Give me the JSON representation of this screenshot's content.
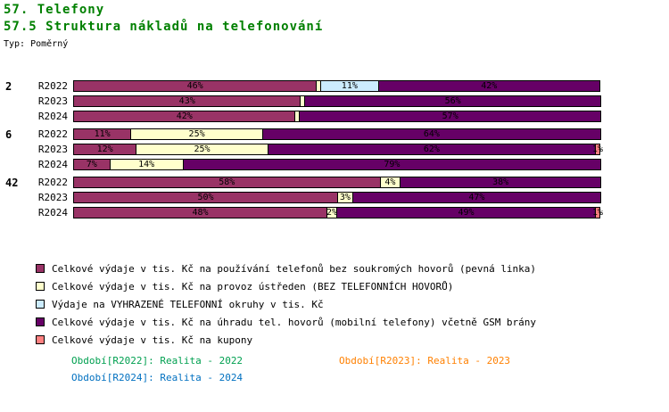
{
  "header": {
    "title": "57. Telefony",
    "subtitle": "57.5 Struktura nákladů na telefonování",
    "type_label": "Typ: Poměrný",
    "title_color": "#008000"
  },
  "chart_data": {
    "type": "bar",
    "variant": "horizontal-stacked-percent",
    "unit": "%",
    "xlim": [
      0,
      100
    ],
    "legend_position": "bottom-left",
    "grid": false,
    "series": [
      {
        "name": "Celkové výdaje v tis. Kč na používání telefonů bez soukromých hovorů (pevná linka)",
        "color": "#993366"
      },
      {
        "name": "Celkové výdaje v tis. Kč na provoz ústředen (BEZ TELEFONNÍCH HOVORŮ)",
        "color": "#FFFFCC"
      },
      {
        "name": "Výdaje na VYHRAZENÉ TELEFONNÍ okruhy v tis. Kč",
        "color": "#CCECFF"
      },
      {
        "name": "Celkové výdaje v tis. Kč na úhradu tel. hovorů (mobilní telefony) včetně GSM brány",
        "color": "#660066"
      },
      {
        "name": "Celkové výdaje v tis. Kč na kupony",
        "color": "#FF8080"
      }
    ],
    "groups": [
      {
        "label": "2",
        "rows": [
          {
            "period": "R2022",
            "segments": [
              {
                "series": 0,
                "value": 46,
                "label": "46%"
              },
              {
                "series": 1,
                "value": 1,
                "label": ""
              },
              {
                "series": 2,
                "value": 11,
                "label": "11%"
              },
              {
                "series": 3,
                "value": 42,
                "label": "42%"
              }
            ]
          },
          {
            "period": "R2023",
            "segments": [
              {
                "series": 0,
                "value": 43,
                "label": "43%"
              },
              {
                "series": 1,
                "value": 1,
                "label": ""
              },
              {
                "series": 3,
                "value": 56,
                "label": "56%"
              }
            ]
          },
          {
            "period": "R2024",
            "segments": [
              {
                "series": 0,
                "value": 42,
                "label": "42%"
              },
              {
                "series": 1,
                "value": 1,
                "label": ""
              },
              {
                "series": 3,
                "value": 57,
                "label": "57%"
              }
            ]
          }
        ]
      },
      {
        "label": "6",
        "rows": [
          {
            "period": "R2022",
            "segments": [
              {
                "series": 0,
                "value": 11,
                "label": "11%"
              },
              {
                "series": 1,
                "value": 25,
                "label": "25%"
              },
              {
                "series": 3,
                "value": 64,
                "label": "64%"
              }
            ]
          },
          {
            "period": "R2023",
            "segments": [
              {
                "series": 0,
                "value": 12,
                "label": "12%"
              },
              {
                "series": 1,
                "value": 25,
                "label": "25%"
              },
              {
                "series": 3,
                "value": 62,
                "label": "62%"
              },
              {
                "series": 4,
                "value": 1,
                "label": "1%"
              }
            ]
          },
          {
            "period": "R2024",
            "segments": [
              {
                "series": 0,
                "value": 7,
                "label": "7%"
              },
              {
                "series": 1,
                "value": 14,
                "label": "14%"
              },
              {
                "series": 3,
                "value": 79,
                "label": "79%"
              }
            ]
          }
        ]
      },
      {
        "label": "42",
        "rows": [
          {
            "period": "R2022",
            "segments": [
              {
                "series": 0,
                "value": 58,
                "label": "58%"
              },
              {
                "series": 1,
                "value": 4,
                "label": "4%"
              },
              {
                "series": 3,
                "value": 38,
                "label": "38%"
              }
            ]
          },
          {
            "period": "R2023",
            "segments": [
              {
                "series": 0,
                "value": 50,
                "label": "50%"
              },
              {
                "series": 1,
                "value": 3,
                "label": "3%"
              },
              {
                "series": 3,
                "value": 47,
                "label": "47%"
              }
            ]
          },
          {
            "period": "R2024",
            "segments": [
              {
                "series": 0,
                "value": 48,
                "label": "48%"
              },
              {
                "series": 1,
                "value": 2,
                "label": "2%"
              },
              {
                "series": 3,
                "value": 49,
                "label": "49%"
              },
              {
                "series": 4,
                "value": 1,
                "label": "1%"
              }
            ]
          }
        ]
      }
    ]
  },
  "period_legend": [
    {
      "label": "Období[R2022]:",
      "value": "Realita - 2022",
      "color": "#00A050"
    },
    {
      "label": "Období[R2023]:",
      "value": "Realita - 2023",
      "color": "#FF8000"
    },
    {
      "label": "Období[R2024]:",
      "value": "Realita - 2024",
      "color": "#0070C0"
    }
  ]
}
